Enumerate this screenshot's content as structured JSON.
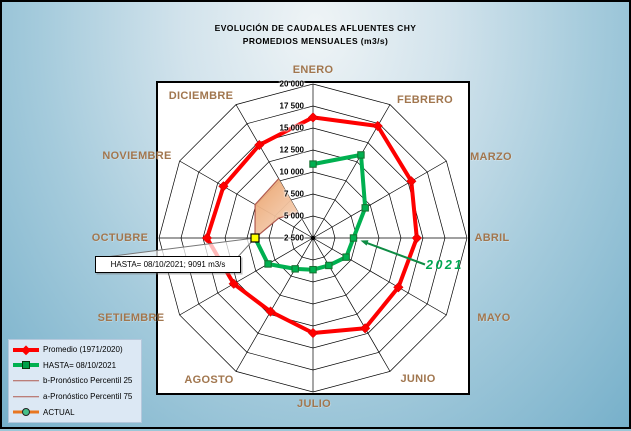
{
  "title": {
    "line1": "EVOLUCIÓN DE CAUDALES AFLUENTES CHY",
    "line2": "PROMEDIOS MENSUALES (m3/s)"
  },
  "chart_data": {
    "type": "radar",
    "categories": [
      "ENERO",
      "FEBRERO",
      "MARZO",
      "ABRIL",
      "MAYO",
      "JUNIO",
      "JULIO",
      "AGOSTO",
      "SETIEMBRE",
      "OCTUBRE",
      "NOVIEMBRE",
      "DICIEMBRE"
    ],
    "axis": {
      "min": 2500,
      "max": 20000,
      "step": 2500,
      "tick_labels": [
        "2 500",
        "5 000",
        "7 500",
        "10 000",
        "12 500",
        "15 000",
        "17 500",
        "20 000"
      ],
      "unit": "m3/s",
      "grid": "polygon-rings"
    },
    "series": [
      {
        "name": "Promedio (1971/2020)",
        "style": "thick-closed",
        "color": "#fe0000",
        "marker": "diamond",
        "month_indices": [
          0,
          1,
          2,
          3,
          4,
          5,
          6,
          7,
          8,
          9,
          10,
          11
        ],
        "values": [
          16200,
          17200,
          15400,
          14300,
          13700,
          14350,
          13300,
          12150,
          12900,
          14550,
          14250,
          14700
        ]
      },
      {
        "name": "HASTA= 08/10/2021",
        "style": "thick-open",
        "color": "#00b050",
        "marker": "square",
        "month_indices": [
          0,
          1,
          2,
          3,
          4,
          5,
          6,
          7,
          8,
          9
        ],
        "values": [
          10900,
          13400,
          9350,
          7100,
          6850,
          6100,
          6100,
          6550,
          8400,
          9091
        ]
      },
      {
        "name": "b-Pronóstico Percentil 25",
        "style": "thin-open",
        "color": "#b05a50",
        "marker": "none",
        "month_indices": [
          9,
          10,
          11
        ],
        "values": [
          9091,
          7000,
          5850
        ]
      },
      {
        "name": "a-Pronóstico Percentil 75",
        "style": "thin-open",
        "color": "#b05a50",
        "marker": "none",
        "month_indices": [
          9,
          10,
          11
        ],
        "values": [
          9091,
          10100,
          10300
        ]
      },
      {
        "name": "ACTUAL",
        "style": "point",
        "color": "#ffff00",
        "marker": "yellow-square",
        "month_indices": [
          9
        ],
        "values": [
          9091
        ]
      }
    ],
    "band": {
      "upper_series": "a-Pronóstico Percentil 75",
      "lower_series": "b-Pronóstico Percentil 25",
      "fill_from": "#e8995c",
      "fill_to": "#fbeadf"
    }
  },
  "annotations": {
    "callout": {
      "text": "HASTA= 08/10/2021; 9091 m3/s"
    },
    "year_label": {
      "text": "2021",
      "color": "#00a651",
      "arrow_color": "#0e8c44"
    }
  },
  "legend": {
    "items": [
      {
        "label": "Promedio (1971/2020)",
        "swatch": "red-diamond-line"
      },
      {
        "label": "HASTA= 08/10/2021",
        "swatch": "green-square-line"
      },
      {
        "label": "b-Pronóstico Percentil 25",
        "swatch": "thin-maroon-line"
      },
      {
        "label": "a-Pronóstico Percentil 75",
        "swatch": "thin-maroon-line"
      },
      {
        "label": "ACTUAL",
        "swatch": "orange-circle-line"
      }
    ]
  },
  "colors": {
    "month_label": "#a1764e",
    "plot_bg": "#ffffff",
    "grid": "#000000"
  }
}
